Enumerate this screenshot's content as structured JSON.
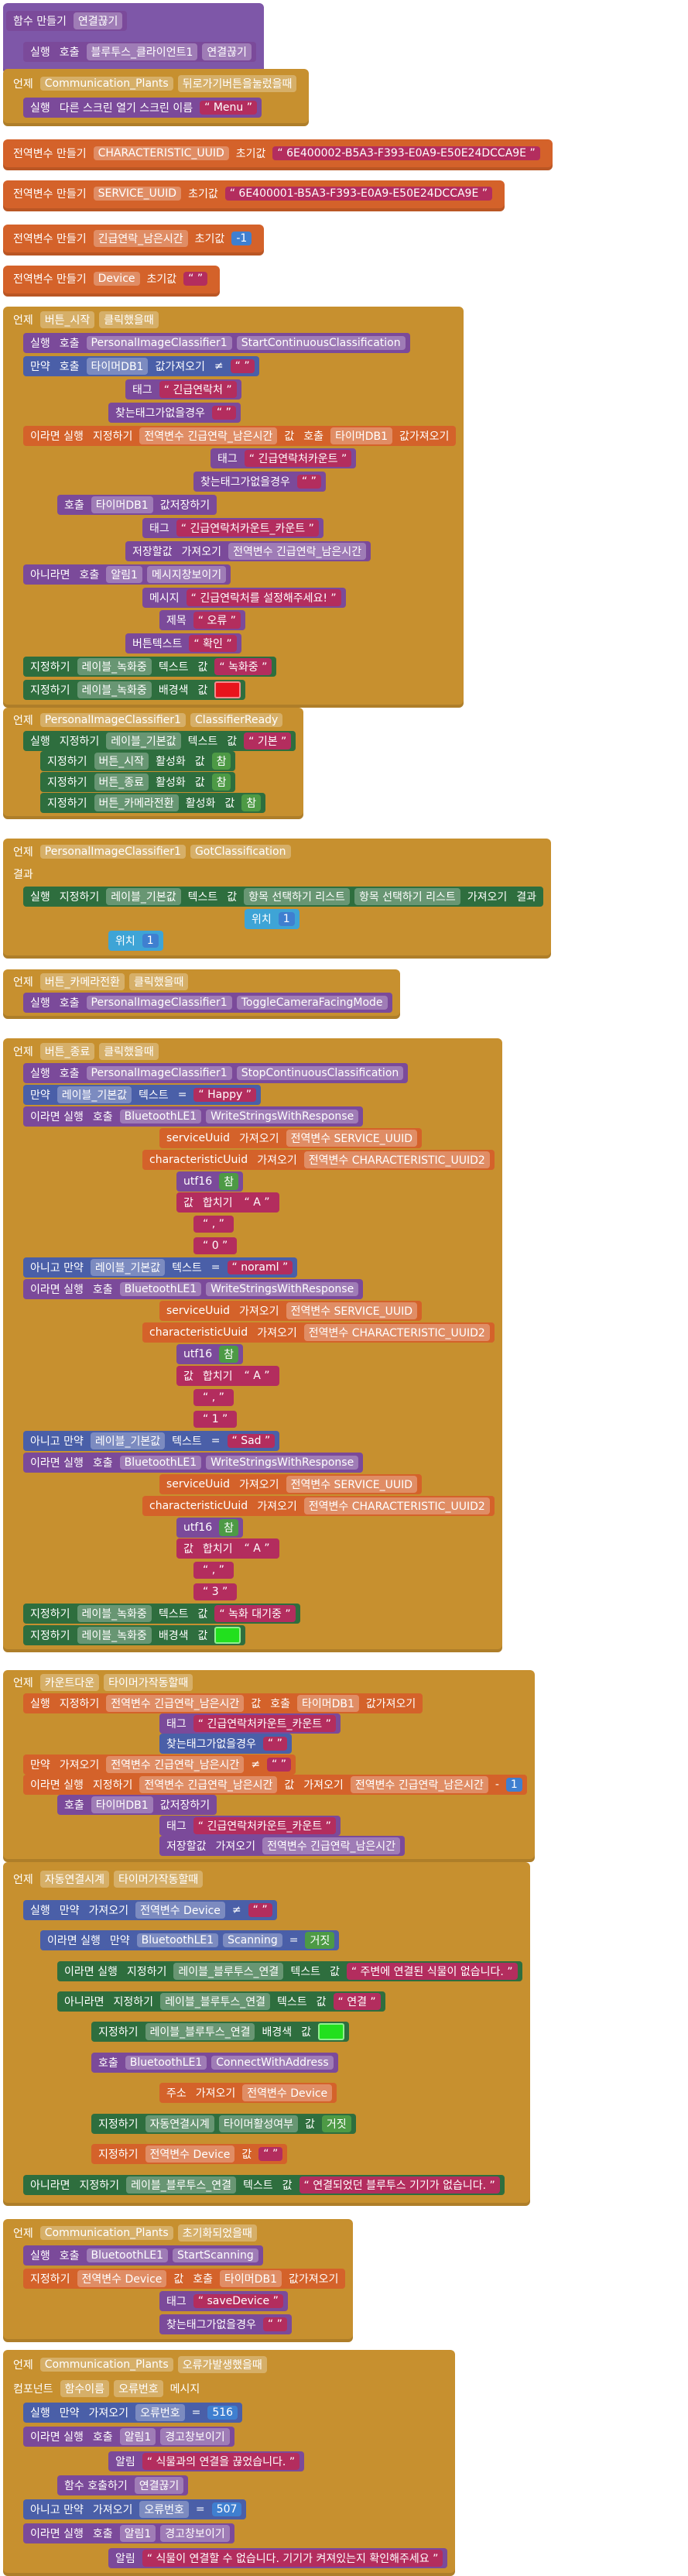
{
  "blocks": [
    {
      "lines": [
        {
          "tokens": [
            "함수 만들기",
            "연결끊기"
          ]
        },
        {
          "tokens": [
            "실행",
            "호출",
            "블루투스_클라이언트1",
            "연결끊기"
          ]
        }
      ]
    },
    {
      "lines": [
        {
          "tokens": [
            "언제",
            "Communication_Plants",
            "뒤로가기버튼을눌렀을때"
          ]
        },
        {
          "tokens": [
            "실행",
            "다른 스크린 열기  스크린 이름",
            "“ Menu ”"
          ]
        }
      ]
    },
    {
      "lines": [
        {
          "tokens": [
            "전역변수 만들기",
            "CHARACTERISTIC_UUID",
            "초기값",
            "“ 6E400002-B5A3-F393-E0A9-E50E24DCCA9E ”"
          ]
        }
      ]
    },
    {
      "lines": [
        {
          "tokens": [
            "전역변수 만들기",
            "SERVICE_UUID",
            "초기값",
            "“ 6E400001-B5A3-F393-E0A9-E50E24DCCA9E ”"
          ]
        }
      ]
    },
    {
      "lines": [
        {
          "tokens": [
            "전역변수 만들기",
            "긴급연락_남은시간",
            "초기값",
            "-1"
          ]
        }
      ]
    },
    {
      "lines": [
        {
          "tokens": [
            "전역변수 만들기",
            "Device",
            "초기값",
            "“ ”"
          ]
        }
      ]
    },
    {
      "lines": [
        {
          "tokens": [
            "언제",
            "버튼_시작",
            "클릭했을때"
          ]
        },
        {
          "tokens": [
            "실행",
            "호출",
            "PersonalImageClassifier1",
            "StartContinuousClassification"
          ]
        },
        {
          "tokens": [
            "만약",
            "호출",
            "타이머DB1",
            "값가져오기",
            "≠",
            "“ ”"
          ]
        },
        {
          "tokens": [
            "태그",
            "“ 긴급연락처 ”"
          ]
        },
        {
          "tokens": [
            "찾는태그가없을경우",
            "“ ”"
          ]
        },
        {
          "tokens": [
            "이라면 실행",
            "지정하기",
            "전역변수 긴급연락_남은시간",
            "값",
            "호출",
            "타이머DB1",
            "값가져오기"
          ]
        },
        {
          "tokens": [
            "태그",
            "“ 긴급연락처카운트 ”"
          ]
        },
        {
          "tokens": [
            "찾는태그가없을경우",
            "“ ”"
          ]
        },
        {
          "tokens": [
            "호출",
            "타이머DB1",
            "값저장하기"
          ]
        },
        {
          "tokens": [
            "태그",
            "“ 긴급연락처카운트_카운트 ”"
          ]
        },
        {
          "tokens": [
            "저장할값",
            "가져오기",
            "전역변수 긴급연락_남은시간"
          ]
        },
        {
          "tokens": [
            "아니라면",
            "호출",
            "알림1",
            "메시지창보이기"
          ]
        },
        {
          "tokens": [
            "메시지",
            "“ 긴급연락처를 설정해주세요! ”"
          ]
        },
        {
          "tokens": [
            "제목",
            "“ 오류 ”"
          ]
        },
        {
          "tokens": [
            "버튼텍스트",
            "“ 확인 ”"
          ]
        },
        {
          "tokens": [
            "지정하기",
            "레이블_녹화중",
            "텍스트",
            "값",
            "“ 녹화중 ”"
          ]
        },
        {
          "tokens": [
            "지정하기",
            "레이블_녹화중",
            "배경색",
            "값"
          ],
          "swatch": "#e8141c"
        }
      ]
    },
    {
      "lines": [
        {
          "tokens": [
            "언제",
            "PersonalImageClassifier1",
            "ClassifierReady"
          ]
        },
        {
          "tokens": [
            "실행",
            "지정하기",
            "레이블_기본값",
            "텍스트",
            "값",
            "“ 기본 ”"
          ]
        },
        {
          "tokens": [
            "지정하기",
            "버튼_시작",
            "활성화",
            "값",
            "참"
          ]
        },
        {
          "tokens": [
            "지정하기",
            "버튼_종료",
            "활성화",
            "값",
            "참"
          ]
        },
        {
          "tokens": [
            "지정하기",
            "버튼_카메라전환",
            "활성화",
            "값",
            "참"
          ]
        }
      ]
    },
    {
      "lines": [
        {
          "tokens": [
            "언제",
            "PersonalImageClassifier1",
            "GotClassification"
          ]
        },
        {
          "tokens": [
            "결과"
          ]
        },
        {
          "tokens": [
            "실행",
            "지정하기",
            "레이블_기본값",
            "텍스트",
            "값",
            "항목 선택하기 리스트",
            "항목 선택하기 리스트",
            "가져오기",
            "결과"
          ]
        },
        {
          "tokens": [
            "위치",
            "1"
          ]
        },
        {
          "tokens": [
            "위치",
            "1"
          ]
        }
      ]
    },
    {
      "lines": [
        {
          "tokens": [
            "언제",
            "버튼_카메라전환",
            "클릭했을때"
          ]
        },
        {
          "tokens": [
            "실행",
            "호출",
            "PersonalImageClassifier1",
            "ToggleCameraFacingMode"
          ]
        }
      ]
    },
    {
      "lines": [
        {
          "tokens": [
            "언제",
            "버튼_종료",
            "클릭했을때"
          ]
        },
        {
          "tokens": [
            "실행",
            "호출",
            "PersonalImageClassifier1",
            "StopContinuousClassification"
          ]
        },
        {
          "tokens": [
            "만약",
            "레이블_기본값",
            "텍스트",
            "=",
            "“ Happy ”"
          ]
        },
        {
          "tokens": [
            "이라면 실행",
            "호출",
            "BluetoothLE1",
            "WriteStringsWithResponse"
          ]
        },
        {
          "tokens": [
            "serviceUuid",
            "가져오기",
            "전역변수 SERVICE_UUID"
          ]
        },
        {
          "tokens": [
            "characteristicUuid",
            "가져오기",
            "전역변수 CHARACTERISTIC_UUID2"
          ]
        },
        {
          "tokens": [
            "utf16",
            "참"
          ]
        },
        {
          "tokens": [
            "값",
            "합치기",
            "“ A ”"
          ]
        },
        {
          "tokens": [
            "“ , ”"
          ]
        },
        {
          "tokens": [
            "“ 0 ”"
          ]
        },
        {
          "tokens": [
            "아니고 만약",
            "레이블_기본값",
            "텍스트",
            "=",
            "“ noraml ”"
          ]
        },
        {
          "tokens": [
            "이라면 실행",
            "호출",
            "BluetoothLE1",
            "WriteStringsWithResponse"
          ]
        },
        {
          "tokens": [
            "serviceUuid",
            "가져오기",
            "전역변수 SERVICE_UUID"
          ]
        },
        {
          "tokens": [
            "characteristicUuid",
            "가져오기",
            "전역변수 CHARACTERISTIC_UUID2"
          ]
        },
        {
          "tokens": [
            "utf16",
            "참"
          ]
        },
        {
          "tokens": [
            "값",
            "합치기",
            "“ A ”"
          ]
        },
        {
          "tokens": [
            "“ , ”"
          ]
        },
        {
          "tokens": [
            "“ 1 ”"
          ]
        },
        {
          "tokens": [
            "아니고 만약",
            "레이블_기본값",
            "텍스트",
            "=",
            "“ Sad ”"
          ]
        },
        {
          "tokens": [
            "이라면 실행",
            "호출",
            "BluetoothLE1",
            "WriteStringsWithResponse"
          ]
        },
        {
          "tokens": [
            "serviceUuid",
            "가져오기",
            "전역변수 SERVICE_UUID"
          ]
        },
        {
          "tokens": [
            "characteristicUuid",
            "가져오기",
            "전역변수 CHARACTERISTIC_UUID2"
          ]
        },
        {
          "tokens": [
            "utf16",
            "참"
          ]
        },
        {
          "tokens": [
            "값",
            "합치기",
            "“ A ”"
          ]
        },
        {
          "tokens": [
            "“ , ”"
          ]
        },
        {
          "tokens": [
            "“ 3 ”"
          ]
        },
        {
          "tokens": [
            "지정하기",
            "레이블_녹화중",
            "텍스트",
            "값",
            "“ 녹화 대기중 ”"
          ]
        },
        {
          "tokens": [
            "지정하기",
            "레이블_녹화중",
            "배경색",
            "값"
          ],
          "swatch": "#22e01e"
        }
      ]
    },
    {
      "lines": [
        {
          "tokens": [
            "언제",
            "카운트다운",
            "타이머가작동할때"
          ]
        },
        {
          "tokens": [
            "실행",
            "지정하기",
            "전역변수 긴급연락_남은시간",
            "값",
            "호출",
            "타이머DB1",
            "값가져오기"
          ]
        },
        {
          "tokens": [
            "태그",
            "“ 긴급연락처카운트_카운트 ”"
          ]
        },
        {
          "tokens": [
            "찾는태그가없을경우",
            "“ ”"
          ]
        },
        {
          "tokens": [
            "만약",
            "가져오기",
            "전역변수 긴급연락_남은시간",
            "≠",
            "“ ”"
          ]
        },
        {
          "tokens": [
            "이라면 실행",
            "지정하기",
            "전역변수 긴급연락_남은시간",
            "값",
            "가져오기",
            "전역변수 긴급연락_남은시간",
            "-",
            "1"
          ]
        },
        {
          "tokens": [
            "호출",
            "타이머DB1",
            "값저장하기"
          ]
        },
        {
          "tokens": [
            "태그",
            "“ 긴급연락처카운트_카운트 ”"
          ]
        },
        {
          "tokens": [
            "저장할값",
            "가져오기",
            "전역변수 긴급연락_남은시간"
          ]
        }
      ]
    },
    {
      "lines": [
        {
          "tokens": [
            "언제",
            "자동연결시계",
            "타이머가작동할때"
          ]
        },
        {
          "tokens": [
            "실행",
            "만약",
            "가져오기",
            "전역변수 Device",
            "≠",
            "“ ”"
          ]
        },
        {
          "tokens": [
            "이라면 실행",
            "만약",
            "BluetoothLE1",
            "Scanning",
            "=",
            "거짓"
          ]
        },
        {
          "tokens": [
            "이라면 실행",
            "지정하기",
            "레이블_블루투스_연결",
            "텍스트",
            "값",
            "“ 주변에 연결된 식물이 없습니다. ”"
          ]
        },
        {
          "tokens": [
            "아니라면",
            "지정하기",
            "레이블_블루투스_연결",
            "텍스트",
            "값",
            "“ 연결 ”"
          ]
        },
        {
          "tokens": [
            "지정하기",
            "레이블_블루투스_연결",
            "배경색",
            "값"
          ],
          "swatch": "#22e01e"
        },
        {
          "tokens": [
            "호출",
            "BluetoothLE1",
            "ConnectWithAddress"
          ]
        },
        {
          "tokens": [
            "주소",
            "가져오기",
            "전역변수 Device"
          ]
        },
        {
          "tokens": [
            "지정하기",
            "자동연결시계",
            "타이머활성여부",
            "값",
            "거짓"
          ]
        },
        {
          "tokens": [
            "지정하기",
            "전역변수 Device",
            "값",
            "“ ”"
          ]
        },
        {
          "tokens": [
            "아니라면",
            "지정하기",
            "레이블_블루투스_연결",
            "텍스트",
            "값",
            "“ 연결되었던 블루투스 기기가 없습니다. ”"
          ]
        }
      ]
    },
    {
      "lines": [
        {
          "tokens": [
            "언제",
            "Communication_Plants",
            "초기화되었을때"
          ]
        },
        {
          "tokens": [
            "실행",
            "호출",
            "BluetoothLE1",
            "StartScanning"
          ]
        },
        {
          "tokens": [
            "지정하기",
            "전역변수 Device",
            "값",
            "호출",
            "타이머DB1",
            "값가져오기"
          ]
        },
        {
          "tokens": [
            "태그",
            "“ saveDevice ”"
          ]
        },
        {
          "tokens": [
            "찾는태그가없을경우",
            "“ ”"
          ]
        }
      ]
    },
    {
      "lines": [
        {
          "tokens": [
            "언제",
            "Communication_Plants",
            "오류가발생했을때"
          ]
        },
        {
          "tokens": [
            "컴포넌트",
            "함수이름",
            "오류번호",
            "메시지"
          ]
        },
        {
          "tokens": [
            "실행",
            "만약",
            "가져오기",
            "오류번호",
            "=",
            "516"
          ]
        },
        {
          "tokens": [
            "이라면 실행",
            "호출",
            "알림1",
            "경고창보이기"
          ]
        },
        {
          "tokens": [
            "알림",
            "“ 식물과의 연결을 끊었습니다. ”"
          ]
        },
        {
          "tokens": [
            "함수 호출하기",
            "연결끊기"
          ]
        },
        {
          "tokens": [
            "아니고 만약",
            "가져오기",
            "오류번호",
            "=",
            "507"
          ]
        },
        {
          "tokens": [
            "이라면 실행",
            "호출",
            "알림1",
            "경고창보이기"
          ]
        },
        {
          "tokens": [
            "알림",
            "“ 식물이 연결할 수 없습니다. 기기가 켜져있는지 확인해주세요 ”"
          ]
        }
      ]
    }
  ]
}
